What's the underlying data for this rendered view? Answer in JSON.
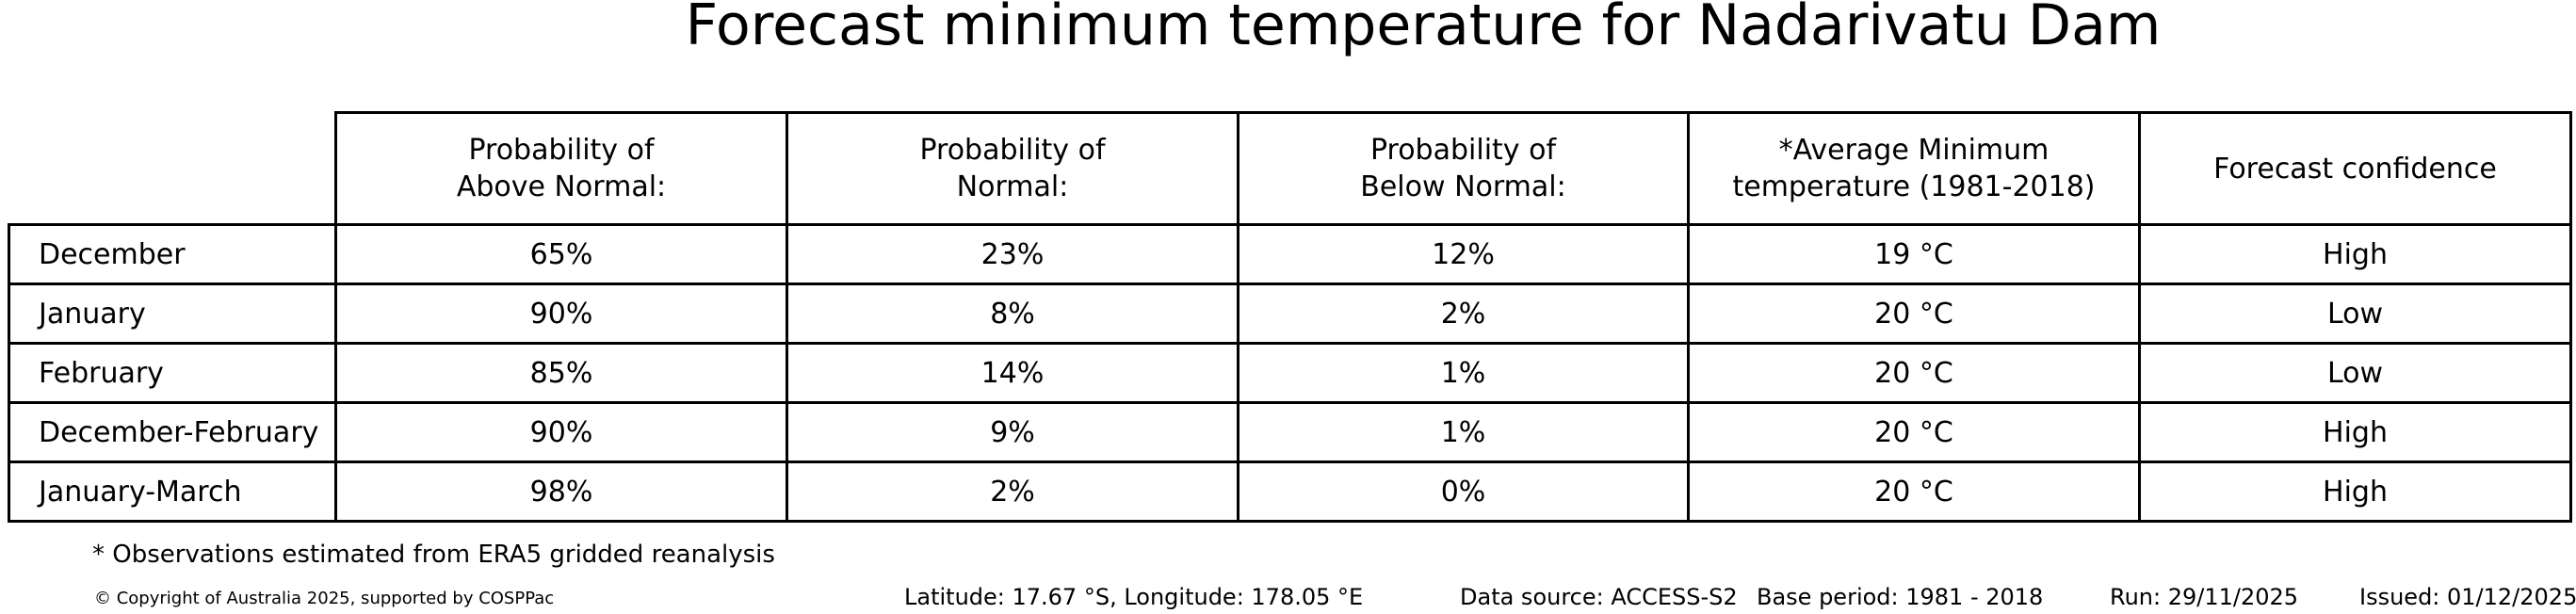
{
  "title": "Forecast minimum temperature for Nadarivatu Dam",
  "table": {
    "columns": [
      "",
      "Probability of\nAbove Normal:",
      "Probability of\nNormal:",
      "Probability of\nBelow Normal:",
      "*Average Minimum\ntemperature (1981-2018)",
      "Forecast confidence"
    ],
    "rows": [
      {
        "label": "December",
        "above": "65%",
        "normal": "23%",
        "below": "12%",
        "avg_temp": "19 °C",
        "confidence": "High"
      },
      {
        "label": "January",
        "above": "90%",
        "normal": "8%",
        "below": "2%",
        "avg_temp": "20 °C",
        "confidence": "Low"
      },
      {
        "label": "February",
        "above": "85%",
        "normal": "14%",
        "below": "1%",
        "avg_temp": "20 °C",
        "confidence": "Low"
      },
      {
        "label": "December-February",
        "above": "90%",
        "normal": "9%",
        "below": "1%",
        "avg_temp": "20 °C",
        "confidence": "High"
      },
      {
        "label": "January-March",
        "above": "98%",
        "normal": "2%",
        "below": "0%",
        "avg_temp": "20 °C",
        "confidence": "High"
      }
    ]
  },
  "footnote": "* Observations estimated from ERA5 gridded reanalysis",
  "footer": {
    "copyright": "© Copyright of Australia 2025, supported by COSPPac",
    "coordinates": "Latitude: 17.67 °S, Longitude: 178.05 °E",
    "data_source": "Data source: ACCESS-S2",
    "base_period": "Base period: 1981 - 2018",
    "run": "Run: 29/11/2025",
    "issued": "Issued: 01/12/2025"
  },
  "chart_data": {
    "type": "table",
    "title": "Forecast minimum temperature for Nadarivatu Dam",
    "columns": [
      "Probability of Above Normal:",
      "Probability of Normal:",
      "Probability of Below Normal:",
      "*Average Minimum temperature (1981-2018)",
      "Forecast confidence"
    ],
    "rows": [
      {
        "period": "December",
        "above_normal_pct": 65,
        "normal_pct": 23,
        "below_normal_pct": 12,
        "avg_min_temp_c": 19,
        "confidence": "High"
      },
      {
        "period": "January",
        "above_normal_pct": 90,
        "normal_pct": 8,
        "below_normal_pct": 2,
        "avg_min_temp_c": 20,
        "confidence": "Low"
      },
      {
        "period": "February",
        "above_normal_pct": 85,
        "normal_pct": 14,
        "below_normal_pct": 1,
        "avg_min_temp_c": 20,
        "confidence": "Low"
      },
      {
        "period": "December-February",
        "above_normal_pct": 90,
        "normal_pct": 9,
        "below_normal_pct": 1,
        "avg_min_temp_c": 20,
        "confidence": "High"
      },
      {
        "period": "January-March",
        "above_normal_pct": 98,
        "normal_pct": 2,
        "below_normal_pct": 0,
        "avg_min_temp_c": 20,
        "confidence": "High"
      }
    ],
    "notes": [
      "* Observations estimated from ERA5 gridded reanalysis",
      "Latitude: 17.67 °S, Longitude: 178.05 °E",
      "Data source: ACCESS-S2",
      "Base period: 1981 - 2018",
      "Run: 29/11/2025",
      "Issued: 01/12/2025"
    ]
  }
}
